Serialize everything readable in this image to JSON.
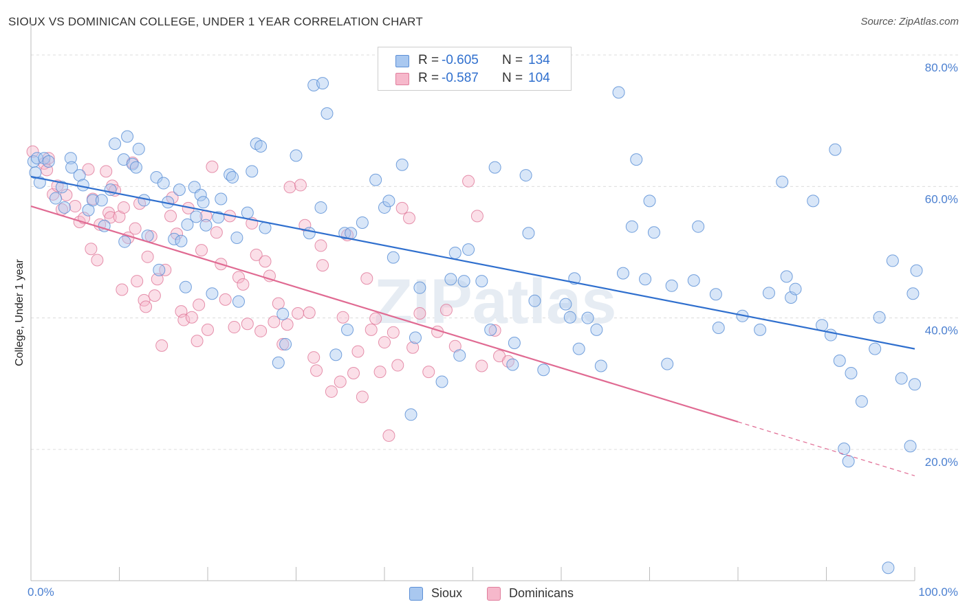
{
  "header": {
    "title": "SIOUX VS DOMINICAN COLLEGE, UNDER 1 YEAR CORRELATION CHART",
    "source": "Source: ZipAtlas.com"
  },
  "watermark": "ZIPatlas",
  "stats_legend": {
    "r_label": "R =",
    "n_label": "N =",
    "rows": [
      {
        "series": "Sioux",
        "r": "-0.605",
        "n": "134"
      },
      {
        "series": "Dominicans",
        "r": "-0.587",
        "n": "104"
      }
    ]
  },
  "colors": {
    "sioux_fill": "#a9c8f0",
    "sioux_stroke": "#5b8fd6",
    "sioux_line": "#2f6fce",
    "dominicans_fill": "#f6b8cb",
    "dominicans_stroke": "#e07d9c",
    "dominicans_line": "#e06a92",
    "axis_label": "#4a7fd0",
    "grid": "#dcdcdc"
  },
  "chart_data": {
    "type": "scatter",
    "xlabel": "",
    "ylabel": "College, Under 1 year",
    "xlim": [
      0,
      100
    ],
    "ylim": [
      0,
      85
    ],
    "x_tick_labels": [
      "0.0%",
      "100.0%"
    ],
    "y_ticks": [
      20,
      40,
      60,
      80
    ],
    "y_tick_labels": [
      "20.0%",
      "40.0%",
      "60.0%",
      "80.0%"
    ],
    "grid": true,
    "legend_position": "bottom",
    "series": [
      {
        "name": "Sioux",
        "trend": {
          "x": [
            0,
            100
          ],
          "y": [
            61.5,
            35.3
          ]
        },
        "points": [
          [
            0.3,
            63.8
          ],
          [
            0.5,
            62.1
          ],
          [
            0.7,
            64.3
          ],
          [
            1.0,
            60.6
          ],
          [
            1.5,
            64.3
          ],
          [
            2.0,
            63.8
          ],
          [
            2.8,
            58.2
          ],
          [
            3.5,
            59.9
          ],
          [
            3.8,
            56.8
          ],
          [
            4.5,
            64.3
          ],
          [
            4.6,
            62.9
          ],
          [
            5.5,
            61.7
          ],
          [
            5.9,
            60.2
          ],
          [
            6.5,
            56.4
          ],
          [
            7.0,
            57.9
          ],
          [
            8.0,
            57.9
          ],
          [
            8.3,
            54.0
          ],
          [
            9.0,
            59.5
          ],
          [
            9.5,
            66.5
          ],
          [
            10.5,
            64.1
          ],
          [
            10.6,
            51.6
          ],
          [
            10.9,
            67.6
          ],
          [
            11.5,
            63.4
          ],
          [
            11.9,
            62.9
          ],
          [
            12.2,
            65.7
          ],
          [
            12.8,
            57.9
          ],
          [
            13.2,
            52.5
          ],
          [
            14.2,
            61.4
          ],
          [
            14.5,
            47.3
          ],
          [
            15.0,
            60.5
          ],
          [
            15.5,
            57.6
          ],
          [
            16.2,
            52.0
          ],
          [
            16.8,
            59.5
          ],
          [
            17.0,
            51.7
          ],
          [
            17.5,
            44.7
          ],
          [
            17.7,
            54.2
          ],
          [
            18.5,
            59.9
          ],
          [
            18.7,
            55.4
          ],
          [
            19.2,
            58.7
          ],
          [
            19.5,
            57.6
          ],
          [
            19.8,
            54.1
          ],
          [
            20.5,
            43.7
          ],
          [
            21.2,
            55.3
          ],
          [
            21.5,
            58.1
          ],
          [
            22.5,
            61.8
          ],
          [
            22.8,
            61.4
          ],
          [
            23.3,
            52.2
          ],
          [
            23.5,
            42.5
          ],
          [
            24.5,
            56.0
          ],
          [
            25.0,
            62.3
          ],
          [
            25.5,
            66.5
          ],
          [
            26.0,
            66.1
          ],
          [
            26.5,
            53.7
          ],
          [
            28.0,
            33.2
          ],
          [
            28.5,
            40.6
          ],
          [
            28.8,
            36.0
          ],
          [
            30.0,
            64.7
          ],
          [
            31.5,
            52.9
          ],
          [
            32.0,
            75.4
          ],
          [
            32.8,
            56.8
          ],
          [
            33.0,
            75.7
          ],
          [
            33.5,
            71.1
          ],
          [
            34.5,
            34.4
          ],
          [
            35.5,
            52.9
          ],
          [
            35.8,
            38.2
          ],
          [
            36.2,
            52.9
          ],
          [
            37.5,
            54.5
          ],
          [
            39.0,
            61.0
          ],
          [
            40.0,
            56.8
          ],
          [
            40.5,
            57.8
          ],
          [
            41.0,
            49.2
          ],
          [
            42.0,
            63.3
          ],
          [
            43.0,
            25.3
          ],
          [
            43.5,
            37.0
          ],
          [
            44.0,
            44.6
          ],
          [
            46.5,
            30.3
          ],
          [
            47.5,
            45.9
          ],
          [
            48.0,
            49.9
          ],
          [
            48.5,
            34.3
          ],
          [
            49.0,
            45.6
          ],
          [
            49.5,
            50.4
          ],
          [
            51.0,
            45.6
          ],
          [
            52.0,
            38.2
          ],
          [
            52.5,
            62.9
          ],
          [
            54.5,
            32.9
          ],
          [
            54.7,
            36.2
          ],
          [
            56.0,
            61.7
          ],
          [
            56.3,
            52.9
          ],
          [
            57.0,
            42.6
          ],
          [
            58.0,
            32.1
          ],
          [
            60.5,
            42.1
          ],
          [
            61.0,
            40.1
          ],
          [
            61.5,
            46.0
          ],
          [
            62.0,
            35.3
          ],
          [
            63.0,
            40.0
          ],
          [
            64.0,
            38.2
          ],
          [
            64.5,
            32.7
          ],
          [
            66.5,
            74.3
          ],
          [
            67.0,
            46.8
          ],
          [
            68.0,
            53.9
          ],
          [
            68.5,
            64.1
          ],
          [
            69.5,
            45.9
          ],
          [
            70.0,
            57.8
          ],
          [
            70.5,
            53.0
          ],
          [
            72.0,
            33.0
          ],
          [
            72.5,
            44.9
          ],
          [
            75.0,
            45.7
          ],
          [
            75.5,
            53.9
          ],
          [
            77.5,
            43.6
          ],
          [
            77.8,
            38.5
          ],
          [
            80.5,
            40.3
          ],
          [
            82.5,
            38.2
          ],
          [
            83.5,
            43.8
          ],
          [
            85.0,
            60.7
          ],
          [
            85.5,
            46.3
          ],
          [
            86.0,
            43.1
          ],
          [
            86.5,
            44.4
          ],
          [
            88.5,
            57.8
          ],
          [
            89.5,
            38.9
          ],
          [
            90.5,
            37.4
          ],
          [
            91.0,
            65.6
          ],
          [
            91.5,
            33.5
          ],
          [
            92.0,
            20.1
          ],
          [
            92.5,
            18.2
          ],
          [
            92.8,
            31.6
          ],
          [
            94.0,
            27.3
          ],
          [
            95.5,
            35.3
          ],
          [
            96.0,
            40.1
          ],
          [
            97.5,
            48.7
          ],
          [
            98.5,
            30.8
          ],
          [
            99.5,
            20.5
          ],
          [
            99.8,
            43.7
          ],
          [
            100.2,
            47.2
          ],
          [
            97.0,
            2.0
          ],
          [
            100.0,
            29.9
          ]
        ]
      },
      {
        "name": "Dominicans",
        "trend": {
          "x": [
            0,
            80
          ],
          "y": [
            57.0,
            24.2
          ]
        },
        "points": [
          [
            0.2,
            65.3
          ],
          [
            1.5,
            63.5
          ],
          [
            1.8,
            62.5
          ],
          [
            2.0,
            64.3
          ],
          [
            2.5,
            58.8
          ],
          [
            3.0,
            60.1
          ],
          [
            3.5,
            56.5
          ],
          [
            4.0,
            58.7
          ],
          [
            5.0,
            57.0
          ],
          [
            5.5,
            54.6
          ],
          [
            6.0,
            55.2
          ],
          [
            6.5,
            62.6
          ],
          [
            6.8,
            50.5
          ],
          [
            7.0,
            58.1
          ],
          [
            7.5,
            48.8
          ],
          [
            7.8,
            54.2
          ],
          [
            8.5,
            62.3
          ],
          [
            8.8,
            56.0
          ],
          [
            9.0,
            55.3
          ],
          [
            9.2,
            60.1
          ],
          [
            9.5,
            59.4
          ],
          [
            10.0,
            55.4
          ],
          [
            10.3,
            44.3
          ],
          [
            10.5,
            56.8
          ],
          [
            11.0,
            52.2
          ],
          [
            11.5,
            63.6
          ],
          [
            11.8,
            53.6
          ],
          [
            12.0,
            45.6
          ],
          [
            12.3,
            57.4
          ],
          [
            12.8,
            42.7
          ],
          [
            13.0,
            41.7
          ],
          [
            13.2,
            49.3
          ],
          [
            13.6,
            52.4
          ],
          [
            14.0,
            43.4
          ],
          [
            14.3,
            45.9
          ],
          [
            14.8,
            35.8
          ],
          [
            15.2,
            47.3
          ],
          [
            15.8,
            55.5
          ],
          [
            16.0,
            58.3
          ],
          [
            16.5,
            52.8
          ],
          [
            17.0,
            41.0
          ],
          [
            17.3,
            39.7
          ],
          [
            17.8,
            56.7
          ],
          [
            18.2,
            40.1
          ],
          [
            18.8,
            36.5
          ],
          [
            19.0,
            42.0
          ],
          [
            19.3,
            50.3
          ],
          [
            19.8,
            55.5
          ],
          [
            20.0,
            38.2
          ],
          [
            20.5,
            63.0
          ],
          [
            21.0,
            53.0
          ],
          [
            21.5,
            48.2
          ],
          [
            22.0,
            42.8
          ],
          [
            22.5,
            55.5
          ],
          [
            23.0,
            38.6
          ],
          [
            23.5,
            46.2
          ],
          [
            24.0,
            45.1
          ],
          [
            24.5,
            39.1
          ],
          [
            25.0,
            54.4
          ],
          [
            25.5,
            49.6
          ],
          [
            26.0,
            38.0
          ],
          [
            26.5,
            48.6
          ],
          [
            27.0,
            46.4
          ],
          [
            27.5,
            39.4
          ],
          [
            28.0,
            42.2
          ],
          [
            28.5,
            36.0
          ],
          [
            29.0,
            39.0
          ],
          [
            29.3,
            59.9
          ],
          [
            30.2,
            40.7
          ],
          [
            30.5,
            60.2
          ],
          [
            31.0,
            54.1
          ],
          [
            31.5,
            40.8
          ],
          [
            32.0,
            34.0
          ],
          [
            32.3,
            32.0
          ],
          [
            32.8,
            51.0
          ],
          [
            33.0,
            48.0
          ],
          [
            34.0,
            28.8
          ],
          [
            35.0,
            30.3
          ],
          [
            35.3,
            40.1
          ],
          [
            35.8,
            52.6
          ],
          [
            36.5,
            31.6
          ],
          [
            37.0,
            34.9
          ],
          [
            37.5,
            28.0
          ],
          [
            38.0,
            46.0
          ],
          [
            38.5,
            38.2
          ],
          [
            39.0,
            39.9
          ],
          [
            39.5,
            31.8
          ],
          [
            40.0,
            36.3
          ],
          [
            40.5,
            22.1
          ],
          [
            41.0,
            37.8
          ],
          [
            41.5,
            32.8
          ],
          [
            42.0,
            56.7
          ],
          [
            42.8,
            55.2
          ],
          [
            43.2,
            35.5
          ],
          [
            44.0,
            40.7
          ],
          [
            45.0,
            31.8
          ],
          [
            46.0,
            37.9
          ],
          [
            47.0,
            41.2
          ],
          [
            48.0,
            35.7
          ],
          [
            49.5,
            60.8
          ],
          [
            50.5,
            55.5
          ],
          [
            51.0,
            32.7
          ],
          [
            52.5,
            38.1
          ],
          [
            53.0,
            34.2
          ],
          [
            54.0,
            33.4
          ]
        ]
      }
    ]
  },
  "bottom_legend": [
    {
      "label": "Sioux"
    },
    {
      "label": "Dominicans"
    }
  ]
}
